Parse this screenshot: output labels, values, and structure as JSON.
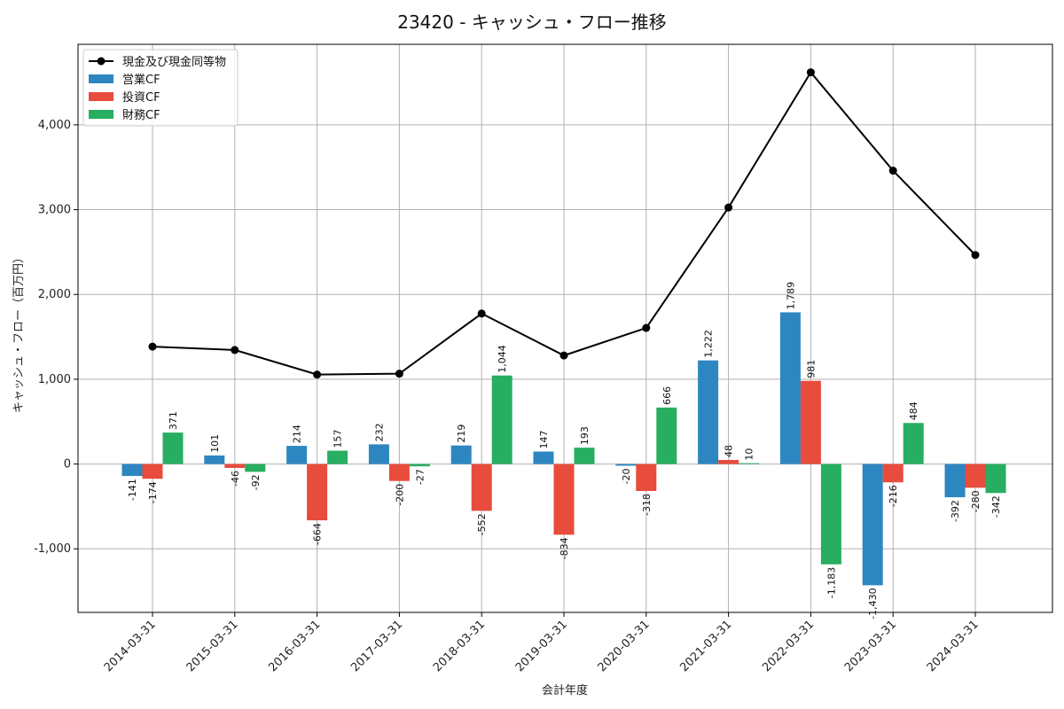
{
  "chart_data": {
    "type": "bar",
    "title": "23420 - キャッシュ・フロー推移",
    "xlabel": "会計年度",
    "ylabel": "キャッシュ・フロー（百万円）",
    "ylim": [
      -1750,
      4950
    ],
    "yticks": [
      -1000,
      0,
      1000,
      2000,
      3000,
      4000
    ],
    "ytick_labels": [
      "-1,000",
      "0",
      "1,000",
      "2,000",
      "3,000",
      "4,000"
    ],
    "grid": true,
    "legend_position": "top-left",
    "categories": [
      "2014-03-31",
      "2015-03-31",
      "2016-03-31",
      "2017-03-31",
      "2018-03-31",
      "2019-03-31",
      "2020-03-31",
      "2021-03-31",
      "2022-03-31",
      "2023-03-31",
      "2024-03-31"
    ],
    "line_series": {
      "name": "現金及び現金同等物",
      "color": "#000000",
      "values": [
        1385,
        1345,
        1055,
        1065,
        1775,
        1280,
        1605,
        3025,
        4620,
        3460,
        2465
      ]
    },
    "series": [
      {
        "name": "営業CF",
        "color": "#2e86c1",
        "values": [
          -141,
          101,
          214,
          232,
          219,
          147,
          -20,
          1222,
          1789,
          -1430,
          -392
        ],
        "labels": [
          "-141",
          "101",
          "214",
          "232",
          "219",
          "147",
          "-20",
          "1,222",
          "1,789",
          "-1,430",
          "-392"
        ]
      },
      {
        "name": "投資CF",
        "color": "#e74c3c",
        "values": [
          -174,
          -46,
          -664,
          -200,
          -552,
          -834,
          -318,
          48,
          981,
          -216,
          -280
        ],
        "labels": [
          "-174",
          "-46",
          "-664",
          "-200",
          "-552",
          "-834",
          "-318",
          "48",
          "981",
          "-216",
          "-280"
        ]
      },
      {
        "name": "財務CF",
        "color": "#27ae60",
        "values": [
          371,
          -92,
          157,
          -27,
          1044,
          193,
          666,
          10,
          -1183,
          484,
          -342
        ],
        "labels": [
          "371",
          "-92",
          "157",
          "-27",
          "1,044",
          "193",
          "666",
          "10",
          "-1,183",
          "484",
          "-342"
        ]
      }
    ]
  }
}
